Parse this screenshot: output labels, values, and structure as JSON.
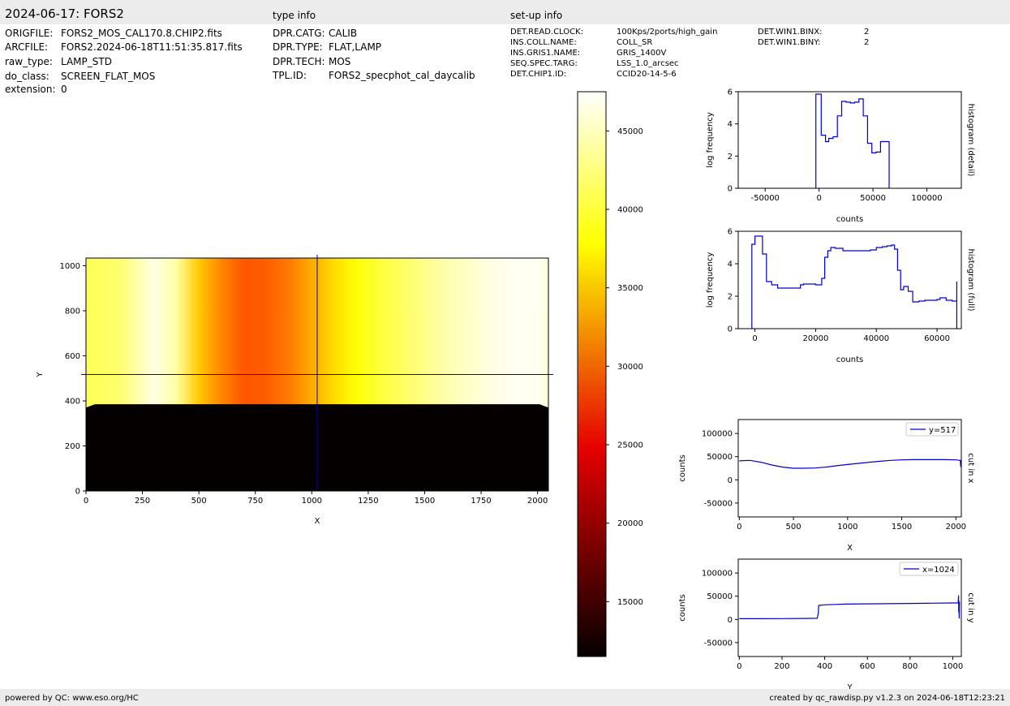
{
  "header": {
    "title": "2024-06-17: FORS2",
    "type_info": "type info",
    "setup_info": "set-up info"
  },
  "left_meta": [
    {
      "key": "ORIGFILE:",
      "value": "FORS2_MOS_CAL170.8.CHIP2.fits"
    },
    {
      "key": "ARCFILE:",
      "value": "FORS2.2024-06-18T11:51:35.817.fits"
    },
    {
      "key": "raw_type:",
      "value": "LAMP_STD"
    },
    {
      "key": "do_class:",
      "value": "SCREEN_FLAT_MOS"
    },
    {
      "key": "extension:",
      "value": "0"
    }
  ],
  "type_meta": [
    {
      "key": "DPR.CATG:",
      "value": "CALIB"
    },
    {
      "key": "DPR.TYPE:",
      "value": "FLAT,LAMP"
    },
    {
      "key": "DPR.TECH:",
      "value": "MOS"
    },
    {
      "key": "TPL.ID:",
      "value": "FORS2_specphot_cal_daycalib"
    }
  ],
  "setup_meta": [
    {
      "key": "DET.READ.CLOCK:",
      "value": "100Kps/2ports/high_gain"
    },
    {
      "key": "INS.COLL.NAME:",
      "value": "COLL_SR"
    },
    {
      "key": "INS.GRIS1.NAME:",
      "value": "GRIS_1400V"
    },
    {
      "key": "SEQ.SPEC.TARG:",
      "value": "LSS_1.0_arcsec"
    },
    {
      "key": "DET.CHIP1.ID:",
      "value": "CCID20-14-5-6"
    }
  ],
  "setup_meta2": [
    {
      "key": "DET.WIN1.BINX:",
      "value": "2"
    },
    {
      "key": "DET.WIN1.BINY:",
      "value": "2"
    }
  ],
  "footer": {
    "left": "powered by QC: www.eso.org/HC",
    "right": "created by qc_rawdisp.py v1.2.3 on 2024-06-18T12:23:21"
  },
  "chart_data": [
    {
      "type": "heatmap",
      "xlabel": "X",
      "ylabel": "Y",
      "xlim": [
        0,
        2048
      ],
      "ylim": [
        0,
        1034
      ],
      "xticks": [
        0,
        250,
        500,
        750,
        1000,
        1250,
        1500,
        1750,
        2000
      ],
      "yticks": [
        0,
        200,
        400,
        600,
        800,
        1000
      ],
      "crosshair": {
        "x": 1024,
        "y": 517
      },
      "colormap": "hot",
      "colorbar": {
        "range": [
          11500,
          47500
        ],
        "ticks": [
          15000,
          20000,
          25000,
          30000,
          35000,
          40000,
          45000
        ]
      },
      "column_profile": {
        "x": [
          0,
          150,
          300,
          400,
          500,
          600,
          700,
          800,
          900,
          1000,
          1100,
          1200,
          1300,
          1400,
          1500,
          1600,
          1700,
          1800,
          1900,
          2000,
          2048
        ],
        "values": [
          41000,
          42000,
          46500,
          44000,
          35000,
          31500,
          29000,
          29500,
          31000,
          33500,
          36000,
          38000,
          40000,
          41500,
          43000,
          44500,
          45500,
          46500,
          47000,
          47000,
          46000
        ]
      },
      "dark_edge_rows": [
        [
          0,
          370
        ],
        [
          40,
          385
        ],
        [
          2008,
          385
        ],
        [
          2048,
          370
        ]
      ]
    },
    {
      "type": "line",
      "xlabel": "counts",
      "ylabel": "log frequency",
      "side_label": "histogram (detail)",
      "xlim": [
        -75000,
        132000
      ],
      "ylim": [
        0,
        6
      ],
      "xticks": [
        -50000,
        0,
        50000,
        100000
      ],
      "yticks": [
        0,
        2,
        4,
        6
      ],
      "x": [
        -3000,
        -3000,
        0,
        2000,
        6000,
        9000,
        13000,
        17000,
        21000,
        25000,
        29000,
        33000,
        37000,
        41000,
        45000,
        49000,
        53000,
        57000,
        61000,
        65000,
        65000
      ],
      "values": [
        0,
        5.85,
        5.85,
        3.3,
        2.9,
        3.1,
        3.2,
        4.5,
        5.4,
        5.35,
        5.3,
        5.35,
        5.55,
        4.5,
        2.8,
        2.2,
        2.25,
        2.9,
        2.9,
        2.9,
        0
      ],
      "line_color": "#0000cc"
    },
    {
      "type": "line",
      "xlabel": "counts",
      "ylabel": "log frequency",
      "side_label": "histogram (full)",
      "xlim": [
        -5500,
        68000
      ],
      "ylim": [
        0,
        6
      ],
      "xticks": [
        0,
        20000,
        40000,
        60000
      ],
      "yticks": [
        0,
        2,
        4,
        6
      ],
      "x": [
        -1000,
        -1000,
        0,
        1200,
        2500,
        3800,
        5500,
        7500,
        10000,
        14000,
        15000,
        16000,
        20000,
        22000,
        23000,
        24000,
        25000,
        26500,
        29000,
        32000,
        36000,
        38000,
        40000,
        42000,
        43500,
        45000,
        46000,
        47000,
        48000,
        49000,
        50500,
        52000,
        54000,
        56000,
        58000,
        60000,
        61000,
        63000,
        65000,
        66500,
        66500
      ],
      "values": [
        0,
        5.2,
        5.7,
        5.7,
        4.6,
        2.9,
        2.7,
        2.5,
        2.5,
        2.5,
        2.7,
        2.75,
        2.7,
        3.1,
        4.4,
        4.8,
        5.0,
        4.95,
        4.8,
        4.8,
        4.8,
        4.85,
        5.0,
        5.05,
        5.1,
        5.15,
        4.9,
        3.6,
        2.4,
        2.6,
        2.3,
        1.65,
        1.7,
        1.75,
        1.75,
        1.8,
        1.9,
        1.75,
        1.7,
        2.9,
        0
      ],
      "line_color": "#0000cc"
    },
    {
      "type": "line",
      "xlabel": "X",
      "ylabel": "counts",
      "side_label": "cut in x",
      "xlim": [
        -10,
        2050
      ],
      "ylim": [
        -80000,
        130000
      ],
      "xticks": [
        0,
        500,
        1000,
        1500,
        2000
      ],
      "yticks": [
        -50000,
        0,
        50000,
        100000
      ],
      "x": [
        0,
        100,
        200,
        300,
        400,
        500,
        600,
        700,
        800,
        900,
        1000,
        1100,
        1200,
        1300,
        1400,
        1500,
        1600,
        1700,
        1800,
        1900,
        2000,
        2040,
        2045,
        2048
      ],
      "values": [
        41000,
        42000,
        38000,
        32000,
        27500,
        25000,
        25000,
        25500,
        27500,
        30500,
        33000,
        35500,
        38000,
        40000,
        42000,
        43000,
        43500,
        43500,
        43500,
        43500,
        43000,
        42000,
        28000,
        42000
      ],
      "legend": "y=517",
      "line_color": "#0000cc"
    },
    {
      "type": "line",
      "xlabel": "Y",
      "ylabel": "counts",
      "side_label": "cut in y",
      "xlim": [
        -5,
        1040
      ],
      "ylim": [
        -80000,
        130000
      ],
      "xticks": [
        0,
        200,
        400,
        600,
        800,
        1000
      ],
      "yticks": [
        -50000,
        0,
        50000,
        100000
      ],
      "x": [
        0,
        100,
        200,
        300,
        365,
        370,
        372,
        400,
        500,
        600,
        700,
        800,
        900,
        1000,
        1025,
        1027,
        1028,
        1029,
        1030,
        1031,
        1034
      ],
      "values": [
        1500,
        1500,
        1800,
        2000,
        2500,
        14000,
        30000,
        31500,
        33000,
        33500,
        34000,
        34500,
        35000,
        35500,
        35500,
        52000,
        15000,
        40000,
        2000,
        36000,
        36000
      ],
      "legend": "x=1024",
      "line_color": "#0000cc"
    }
  ]
}
